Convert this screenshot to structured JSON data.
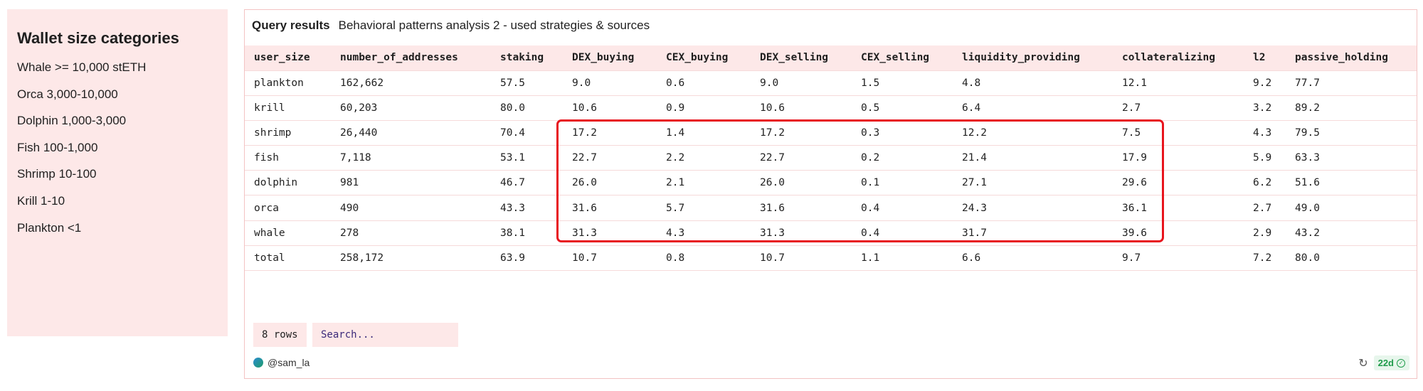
{
  "legend": {
    "title": "Wallet size categories",
    "items": [
      "Whale >= 10,000 stETH",
      "Orca 3,000-10,000",
      "Dolphin 1,000-3,000",
      "Fish 100-1,000",
      "Shrimp 10-100",
      "Krill 1-10",
      "Plankton <1"
    ]
  },
  "results": {
    "label": "Query results",
    "query_name": "Behavioral patterns analysis 2 - used strategies & sources",
    "columns": [
      "user_size",
      "number_of_addresses",
      "staking",
      "DEX_buying",
      "CEX_buying",
      "DEX_selling",
      "CEX_selling",
      "liquidity_providing",
      "collateralizing",
      "l2",
      "passive_holding"
    ],
    "rows": [
      [
        "plankton",
        "162,662",
        "57.5",
        "9.0",
        "0.6",
        "9.0",
        "1.5",
        "4.8",
        "12.1",
        "9.2",
        "77.7"
      ],
      [
        "krill",
        "60,203",
        "80.0",
        "10.6",
        "0.9",
        "10.6",
        "0.5",
        "6.4",
        "2.7",
        "3.2",
        "89.2"
      ],
      [
        "shrimp",
        "26,440",
        "70.4",
        "17.2",
        "1.4",
        "17.2",
        "0.3",
        "12.2",
        "7.5",
        "4.3",
        "79.5"
      ],
      [
        "fish",
        "7,118",
        "53.1",
        "22.7",
        "2.2",
        "22.7",
        "0.2",
        "21.4",
        "17.9",
        "5.9",
        "63.3"
      ],
      [
        "dolphin",
        "981",
        "46.7",
        "26.0",
        "2.1",
        "26.0",
        "0.1",
        "27.1",
        "29.6",
        "6.2",
        "51.6"
      ],
      [
        "orca",
        "490",
        "43.3",
        "31.6",
        "5.7",
        "31.6",
        "0.4",
        "24.3",
        "36.1",
        "2.7",
        "49.0"
      ],
      [
        "whale",
        "278",
        "38.1",
        "31.3",
        "4.3",
        "31.3",
        "0.4",
        "31.7",
        "39.6",
        "2.9",
        "43.2"
      ],
      [
        "total",
        "258,172",
        "63.9",
        "10.7",
        "0.8",
        "10.7",
        "1.1",
        "6.6",
        "9.7",
        "7.2",
        "80.0"
      ]
    ],
    "rows_count": "8 rows",
    "search_placeholder": "Search...",
    "author": "@sam_la",
    "age": "22d"
  },
  "colors": {
    "panel_bg": "#fde8e8",
    "highlight": "#e8141d",
    "fresh_green": "#1f9c4a"
  }
}
